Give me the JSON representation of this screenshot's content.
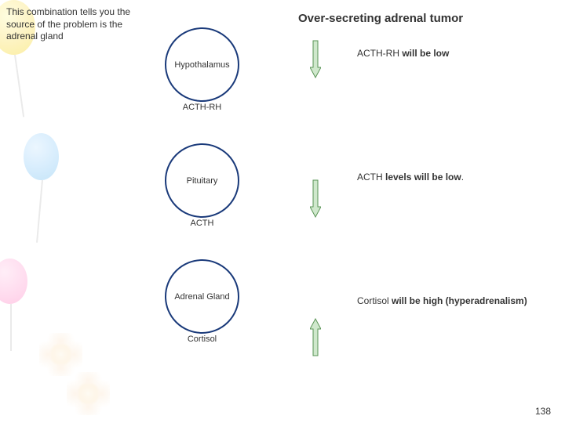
{
  "note": "This combination tells you the source of the problem is the adrenal gland",
  "title": "Over-secreting adrenal tumor",
  "circles": [
    {
      "label": "Hypothalamus",
      "hormone": "ACTH-RH"
    },
    {
      "label": "Pituitary",
      "hormone": "ACTH"
    },
    {
      "label": "Adrenal Gland",
      "hormone": "Cortisol"
    }
  ],
  "arrows": [
    {
      "direction": "down",
      "fill": "#cfe8cc",
      "stroke": "#5a9456"
    },
    {
      "direction": "down",
      "fill": "#cfe8cc",
      "stroke": "#5a9456"
    },
    {
      "direction": "up",
      "fill": "#cfe8cc",
      "stroke": "#5a9456"
    }
  ],
  "results": [
    {
      "pre": "ACTH-RH ",
      "bold": "will be low",
      "post": ""
    },
    {
      "pre": "ACTH ",
      "bold": "levels will be low",
      "post": "."
    },
    {
      "pre": "Cortisol ",
      "bold": "will be high (hyperadrenalism)",
      "post": ""
    }
  ],
  "circle_stroke": "#1a3a7a",
  "page_number": "138"
}
